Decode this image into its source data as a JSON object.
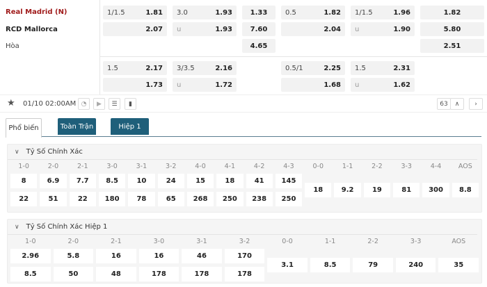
{
  "teams": {
    "home": "Real Madrid (N)",
    "away": "RCD Mallorca",
    "draw": "Hòa"
  },
  "colors": {
    "home": "#a01c1c",
    "tab_active_bg": "#1f5f7a"
  },
  "odds_main": {
    "hdp": {
      "line": "1/1.5",
      "home": "1.81",
      "away": "2.07"
    },
    "ou": {
      "line": "3.0",
      "over": "1.93",
      "u": "u",
      "under": "1.93"
    },
    "x12": {
      "home": "1.33",
      "away": "7.60",
      "draw": "4.65"
    },
    "h1_hdp": {
      "line": "0.5",
      "home": "1.82",
      "away": "2.04"
    },
    "h1_ou": {
      "line": "1/1.5",
      "over": "1.96",
      "u": "u",
      "under": "1.90"
    },
    "h1_x12": {
      "home": "1.82",
      "away": "5.80",
      "draw": "2.51"
    }
  },
  "odds_alt": {
    "hdp": {
      "line": "1.5",
      "home": "2.17",
      "away": "1.73"
    },
    "ou": {
      "line": "3/3.5",
      "over": "2.16",
      "u": "u",
      "under": "1.72"
    },
    "h1_hdp": {
      "line": "0.5/1",
      "home": "2.25",
      "away": "1.68"
    },
    "h1_ou": {
      "line": "1.5",
      "over": "2.31",
      "u": "u",
      "under": "1.62"
    }
  },
  "match_bar": {
    "datetime": "01/10 02:00AM",
    "count": "63",
    "icons": [
      "star-icon",
      "clock-icon",
      "play-icon",
      "list-icon",
      "chart-icon",
      "chevron-up-icon",
      "chevron-right-icon"
    ]
  },
  "tabs": [
    "Phổ biến",
    "Toàn Trận",
    "Hiệp 1"
  ],
  "sections": [
    {
      "title": "Tỷ Số Chính Xác",
      "scores": [
        [
          "1-0",
          "8",
          "22"
        ],
        [
          "2-0",
          "6.9",
          "51"
        ],
        [
          "2-1",
          "7.7",
          "22"
        ],
        [
          "3-0",
          "8.5",
          "180"
        ],
        [
          "3-1",
          "10",
          "78"
        ],
        [
          "3-2",
          "24",
          "65"
        ],
        [
          "4-0",
          "15",
          "268"
        ],
        [
          "4-1",
          "18",
          "250"
        ],
        [
          "4-2",
          "41",
          "238"
        ],
        [
          "4-3",
          "145",
          "250"
        ]
      ],
      "draws": [
        [
          "0-0",
          "18"
        ],
        [
          "1-1",
          "9.2"
        ],
        [
          "2-2",
          "19"
        ],
        [
          "3-3",
          "81"
        ],
        [
          "4-4",
          "300"
        ],
        [
          "AOS",
          "8.8"
        ]
      ]
    },
    {
      "title": "Tỷ Số Chính Xác Hiệp 1",
      "scores": [
        [
          "1-0",
          "2.96",
          "8.5"
        ],
        [
          "2-0",
          "5.8",
          "50"
        ],
        [
          "2-1",
          "16",
          "48"
        ],
        [
          "3-0",
          "16",
          "178"
        ],
        [
          "3-1",
          "46",
          "178"
        ],
        [
          "3-2",
          "170",
          "178"
        ]
      ],
      "draws": [
        [
          "0-0",
          "3.1"
        ],
        [
          "1-1",
          "8.5"
        ],
        [
          "2-2",
          "79"
        ],
        [
          "3-3",
          "240"
        ],
        [
          "AOS",
          "35"
        ]
      ]
    }
  ]
}
